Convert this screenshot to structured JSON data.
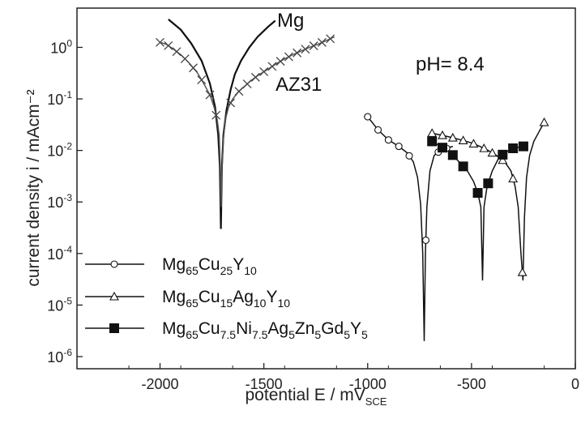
{
  "chart_data": {
    "type": "line",
    "title": "",
    "x_axis": {
      "label_main": "potential E / mV",
      "label_sub": "SCE",
      "range": [
        -2400,
        0
      ],
      "ticks": [
        -2000,
        -1500,
        -1000,
        -500,
        0
      ],
      "tick_labels": [
        "-2000",
        "-1500",
        "-1000",
        "-500",
        "0"
      ]
    },
    "y_axis": {
      "label": "current density  i / mAcm⁻²",
      "scale": "log",
      "range": [
        1e-06,
        5
      ],
      "ticks": [
        1e-06,
        1e-05,
        0.0001,
        0.001,
        0.01,
        0.1,
        1
      ],
      "tick_labels": [
        {
          "base": "10",
          "exp": "-6"
        },
        {
          "base": "10",
          "exp": "-5"
        },
        {
          "base": "10",
          "exp": "-4"
        },
        {
          "base": "10",
          "exp": "-3"
        },
        {
          "base": "10",
          "exp": "-2"
        },
        {
          "base": "10",
          "exp": "-1"
        },
        {
          "base": "10",
          "exp": "0"
        }
      ]
    },
    "annotations": {
      "mg": "Mg",
      "az31": "AZ31",
      "ph": "pH= 8.4"
    },
    "series": [
      {
        "id": "mg",
        "marker": "none",
        "color": "#111111",
        "points": [
          [
            -1960,
            3.5
          ],
          [
            -1900,
            2.2
          ],
          [
            -1850,
            1.2
          ],
          [
            -1800,
            0.55
          ],
          [
            -1760,
            0.2
          ],
          [
            -1735,
            0.07
          ],
          [
            -1720,
            0.02
          ],
          [
            -1712,
            0.005
          ],
          [
            -1707,
            0.0003
          ],
          [
            -1702,
            0.005
          ],
          [
            -1695,
            0.02
          ],
          [
            -1680,
            0.06
          ],
          [
            -1660,
            0.15
          ],
          [
            -1640,
            0.3
          ],
          [
            -1610,
            0.55
          ],
          [
            -1570,
            1.0
          ],
          [
            -1530,
            1.6
          ],
          [
            -1480,
            2.5
          ],
          [
            -1445,
            3.3
          ]
        ]
      },
      {
        "id": "az31",
        "marker": "x",
        "color": "#555555",
        "points": [
          [
            -2000,
            1.25
          ],
          [
            -1970,
            1.15
          ],
          [
            -1940,
            0.95
          ],
          [
            -1900,
            0.72
          ],
          [
            -1860,
            0.5
          ],
          [
            -1820,
            0.32
          ],
          [
            -1790,
            0.2
          ],
          [
            -1760,
            0.12
          ],
          [
            -1740,
            0.07
          ],
          [
            -1725,
            0.04
          ],
          [
            -1715,
            0.02
          ],
          [
            -1710,
            0.005
          ],
          [
            -1706,
            0.0008
          ],
          [
            -1702,
            0.004
          ],
          [
            -1696,
            0.015
          ],
          [
            -1685,
            0.04
          ],
          [
            -1670,
            0.07
          ],
          [
            -1650,
            0.1
          ],
          [
            -1620,
            0.14
          ],
          [
            -1590,
            0.18
          ],
          [
            -1560,
            0.23
          ],
          [
            -1520,
            0.3
          ],
          [
            -1480,
            0.38
          ],
          [
            -1440,
            0.48
          ],
          [
            -1400,
            0.6
          ],
          [
            -1360,
            0.72
          ],
          [
            -1320,
            0.85
          ],
          [
            -1280,
            1.0
          ],
          [
            -1240,
            1.15
          ],
          [
            -1200,
            1.35
          ],
          [
            -1160,
            1.6
          ]
        ],
        "marker_x": [
          -2000,
          -1960,
          -1920,
          -1880,
          -1840,
          -1800,
          -1760,
          -1730,
          -1660,
          -1620,
          -1580,
          -1540,
          -1500,
          -1460,
          -1420,
          -1380,
          -1340,
          -1300,
          -1260,
          -1220,
          -1180
        ]
      },
      {
        "id": "alloy1",
        "marker": "open-circle",
        "color": "#111111",
        "legend": {
          "base": "Mg",
          "parts": [
            [
              "65",
              "Cu"
            ],
            [
              "25",
              "Y"
            ],
            [
              "10",
              ""
            ]
          ]
        },
        "points": [
          [
            -1000,
            0.045
          ],
          [
            -950,
            0.025
          ],
          [
            -900,
            0.016
          ],
          [
            -850,
            0.012
          ],
          [
            -810,
            0.009
          ],
          [
            -780,
            0.006
          ],
          [
            -760,
            0.003
          ],
          [
            -745,
            0.0009
          ],
          [
            -735,
            0.0001
          ],
          [
            -728,
            2e-06
          ],
          [
            -722,
            0.0001
          ],
          [
            -715,
            0.0008
          ],
          [
            -700,
            0.004
          ],
          [
            -680,
            0.008
          ],
          [
            -650,
            0.01
          ],
          [
            -620,
            0.011
          ],
          [
            -590,
            0.012
          ]
        ],
        "marker_x": [
          -1000,
          -950,
          -900,
          -850,
          -800,
          -720,
          -660,
          -620
        ]
      },
      {
        "id": "alloy2",
        "marker": "open-triangle",
        "color": "#111111",
        "legend": {
          "base": "Mg",
          "parts": [
            [
              "65",
              "Cu"
            ],
            [
              "15",
              "Ag"
            ],
            [
              "10",
              "Y"
            ],
            [
              "10",
              ""
            ]
          ]
        },
        "points": [
          [
            -700,
            0.022
          ],
          [
            -650,
            0.02
          ],
          [
            -600,
            0.018
          ],
          [
            -550,
            0.016
          ],
          [
            -500,
            0.014
          ],
          [
            -460,
            0.012
          ],
          [
            -420,
            0.01
          ],
          [
            -380,
            0.008
          ],
          [
            -340,
            0.006
          ],
          [
            -310,
            0.004
          ],
          [
            -290,
            0.002
          ],
          [
            -275,
            0.0008
          ],
          [
            -262,
            0.0001
          ],
          [
            -252,
            3e-05
          ],
          [
            -245,
            0.0005
          ],
          [
            -235,
            0.003
          ],
          [
            -220,
            0.008
          ],
          [
            -200,
            0.015
          ],
          [
            -170,
            0.025
          ],
          [
            -150,
            0.035
          ]
        ],
        "marker_x": [
          -690,
          -640,
          -590,
          -540,
          -490,
          -440,
          -400,
          -350,
          -300,
          -255,
          -150
        ]
      },
      {
        "id": "alloy3",
        "marker": "filled-square",
        "color": "#111111",
        "legend": {
          "base": "Mg",
          "parts": [
            [
              "65",
              "Cu"
            ],
            [
              "7.5",
              "Ni"
            ],
            [
              "7.5",
              "Ag"
            ],
            [
              "5",
              "Zn"
            ],
            [
              "5",
              "Gd"
            ],
            [
              "5",
              "Y"
            ],
            [
              "5",
              ""
            ]
          ]
        },
        "points": [
          [
            -690,
            0.015
          ],
          [
            -650,
            0.012
          ],
          [
            -600,
            0.009
          ],
          [
            -560,
            0.006
          ],
          [
            -520,
            0.004
          ],
          [
            -490,
            0.0025
          ],
          [
            -470,
            0.0015
          ],
          [
            -455,
            0.0008
          ],
          [
            -447,
            3e-05
          ],
          [
            -440,
            0.0008
          ],
          [
            -425,
            0.002
          ],
          [
            -400,
            0.004
          ],
          [
            -370,
            0.007
          ],
          [
            -340,
            0.009
          ],
          [
            -300,
            0.011
          ],
          [
            -250,
            0.012
          ]
        ],
        "marker_x": [
          -690,
          -640,
          -590,
          -540,
          -470,
          -420,
          -350,
          -300,
          -250
        ]
      }
    ]
  }
}
